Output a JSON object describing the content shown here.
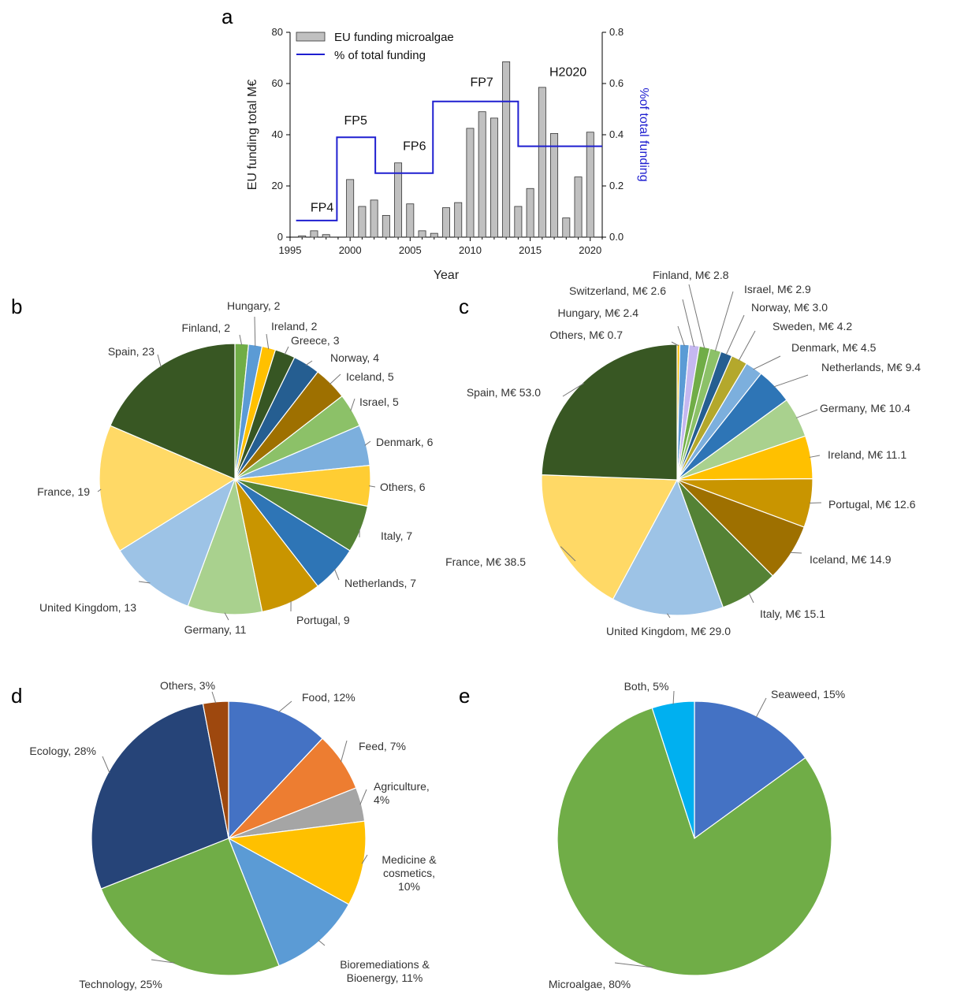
{
  "chart_data": [
    {
      "id": "a",
      "type": "bar",
      "panel": "a",
      "xlabel": "Year",
      "ylabel": "EU funding total M€",
      "ylabel_right": "%of total funding",
      "ylim": [
        0,
        80
      ],
      "ylim_right": [
        0,
        0.8
      ],
      "xlim": [
        1995,
        2021
      ],
      "yticks": [
        "0",
        "20",
        "40",
        "60",
        "80"
      ],
      "yticks_right": [
        "0.0",
        "0.2",
        "0.4",
        "0.6",
        "0.8"
      ],
      "xticks": [
        "1995",
        "2000",
        "2005",
        "2010",
        "2015",
        "2020"
      ],
      "legend": [
        "EU funding microalgae",
        "% of total funding"
      ],
      "bar_color": "#c0c0c0",
      "line_color": "#1f1fd0",
      "categories": [
        1996,
        1997,
        1998,
        1999,
        2000,
        2001,
        2002,
        2003,
        2004,
        2005,
        2006,
        2007,
        2008,
        2009,
        2010,
        2011,
        2012,
        2013,
        2014,
        2015,
        2016,
        2017,
        2018,
        2019,
        2020
      ],
      "values": [
        0.5,
        2.5,
        1.0,
        0,
        22.5,
        12,
        14.5,
        8.5,
        29,
        13,
        2.5,
        1.5,
        11.5,
        13.5,
        42.5,
        49,
        46.5,
        68.5,
        12,
        19,
        58.5,
        40.5,
        7.5,
        23.5,
        41
      ],
      "step_series": [
        {
          "x": [
            1995.5,
            1998.9
          ],
          "y": 0.065
        },
        {
          "x": [
            1998.9,
            2002.1
          ],
          "y": 0.39
        },
        {
          "x": [
            2002.1,
            2006.9
          ],
          "y": 0.25
        },
        {
          "x": [
            2006.9,
            2014.0
          ],
          "y": 0.53
        },
        {
          "x": [
            2014.0,
            2021.0
          ],
          "y": 0.355
        }
      ],
      "annotations": [
        {
          "text": "FP4",
          "x": 1996.7,
          "y": 10
        },
        {
          "text": "FP5",
          "x": 1999.5,
          "y": 44
        },
        {
          "text": "FP6",
          "x": 2004.4,
          "y": 34
        },
        {
          "text": "FP7",
          "x": 2010.0,
          "y": 59
        },
        {
          "text": "H2020",
          "x": 2016.6,
          "y": 63
        }
      ]
    },
    {
      "id": "b",
      "type": "pie",
      "panel": "b",
      "slices": [
        {
          "label": "Finland, 2",
          "value": 2,
          "color": "#70ad47"
        },
        {
          "label": "Hungary, 2",
          "value": 2,
          "color": "#5b9bd5"
        },
        {
          "label": "Ireland, 2",
          "value": 2,
          "color": "#ffc000"
        },
        {
          "label": "Greece, 3",
          "value": 3,
          "color": "#375623"
        },
        {
          "label": "Norway, 4",
          "value": 4,
          "color": "#255e91"
        },
        {
          "label": "Iceland, 5",
          "value": 5,
          "color": "#9e7000"
        },
        {
          "label": "Israel, 5",
          "value": 5,
          "color": "#8cc168"
        },
        {
          "label": "Denmark, 6",
          "value": 6,
          "color": "#7cafdd"
        },
        {
          "label": "Others, 6",
          "value": 6,
          "color": "#ffcd33"
        },
        {
          "label": "Italy, 7",
          "value": 7,
          "color": "#548235"
        },
        {
          "label": "Netherlands, 7",
          "value": 7,
          "color": "#2e75b6"
        },
        {
          "label": "Portugal, 9",
          "value": 9,
          "color": "#c99500"
        },
        {
          "label": "Germany, 11",
          "value": 11,
          "color": "#a9d18e"
        },
        {
          "label": "United Kingdom, 13",
          "value": 13,
          "color": "#9dc3e6"
        },
        {
          "label": "France, 19",
          "value": 19,
          "color": "#ffd966"
        },
        {
          "label": "Spain, 23",
          "value": 23,
          "color": "#385723"
        }
      ]
    },
    {
      "id": "c",
      "type": "pie",
      "panel": "c",
      "slices": [
        {
          "label": "Others, M€ 0.7",
          "value": 0.7,
          "color": "#ffc000"
        },
        {
          "label": "Hungary, M€ 2.4",
          "value": 2.4,
          "color": "#5b9bd5"
        },
        {
          "label": "Switzerland, M€ 2.6",
          "value": 2.6,
          "color": "#c5b8f0"
        },
        {
          "label": "Finland, M€ 2.8",
          "value": 2.8,
          "color": "#70ad47"
        },
        {
          "label": "Israel, M€ 2.9",
          "value": 2.9,
          "color": "#8cc168"
        },
        {
          "label": "Norway, M€ 3.0",
          "value": 3.0,
          "color": "#255e91"
        },
        {
          "label": "Sweden, M€ 4.2",
          "value": 4.2,
          "color": "#b4a82c"
        },
        {
          "label": "Denmark, M€ 4.5",
          "value": 4.5,
          "color": "#7cafdd"
        },
        {
          "label": "Netherlands, M€ 9.4",
          "value": 9.4,
          "color": "#2e75b6"
        },
        {
          "label": "Germany, M€ 10.4",
          "value": 10.4,
          "color": "#a9d18e"
        },
        {
          "label": "Ireland, M€ 11.1",
          "value": 11.1,
          "color": "#ffc000"
        },
        {
          "label": "Portugal, M€ 12.6",
          "value": 12.6,
          "color": "#c99500"
        },
        {
          "label": "Iceland, M€ 14.9",
          "value": 14.9,
          "color": "#9e7000"
        },
        {
          "label": "Italy, M€ 15.1",
          "value": 15.1,
          "color": "#548235"
        },
        {
          "label": "United Kingdom, M€ 29.0",
          "value": 29.0,
          "color": "#9dc3e6"
        },
        {
          "label": "France, M€ 38.5",
          "value": 38.5,
          "color": "#ffd966"
        },
        {
          "label": "Spain, M€ 53.0",
          "value": 53.0,
          "color": "#385723"
        }
      ]
    },
    {
      "id": "d",
      "type": "pie",
      "panel": "d",
      "slices": [
        {
          "label": "Food, 12%",
          "value": 12,
          "color": "#4472c4"
        },
        {
          "label": "Feed, 7%",
          "value": 7,
          "color": "#ed7d31"
        },
        {
          "label": "Agriculture,\n4%",
          "value": 4,
          "color": "#a5a5a5"
        },
        {
          "label": "Medicine &\ncosmetics,\n10%",
          "value": 10,
          "color": "#ffc000"
        },
        {
          "label": "Bioremediations &\nBioenergy, 11%",
          "value": 11,
          "color": "#5b9bd5"
        },
        {
          "label": "Technology, 25%",
          "value": 25,
          "color": "#70ad47"
        },
        {
          "label": "Ecology, 28%",
          "value": 28,
          "color": "#264478"
        },
        {
          "label": "Others, 3%",
          "value": 3,
          "color": "#9e480e"
        }
      ]
    },
    {
      "id": "e",
      "type": "pie",
      "panel": "e",
      "slices": [
        {
          "label": "Seaweed, 15%",
          "value": 15,
          "color": "#4472c4"
        },
        {
          "label": "Microalgae, 80%",
          "value": 80,
          "color": "#70ad47"
        },
        {
          "label": "Both, 5%",
          "value": 5,
          "color": "#00b0f0"
        }
      ]
    }
  ]
}
